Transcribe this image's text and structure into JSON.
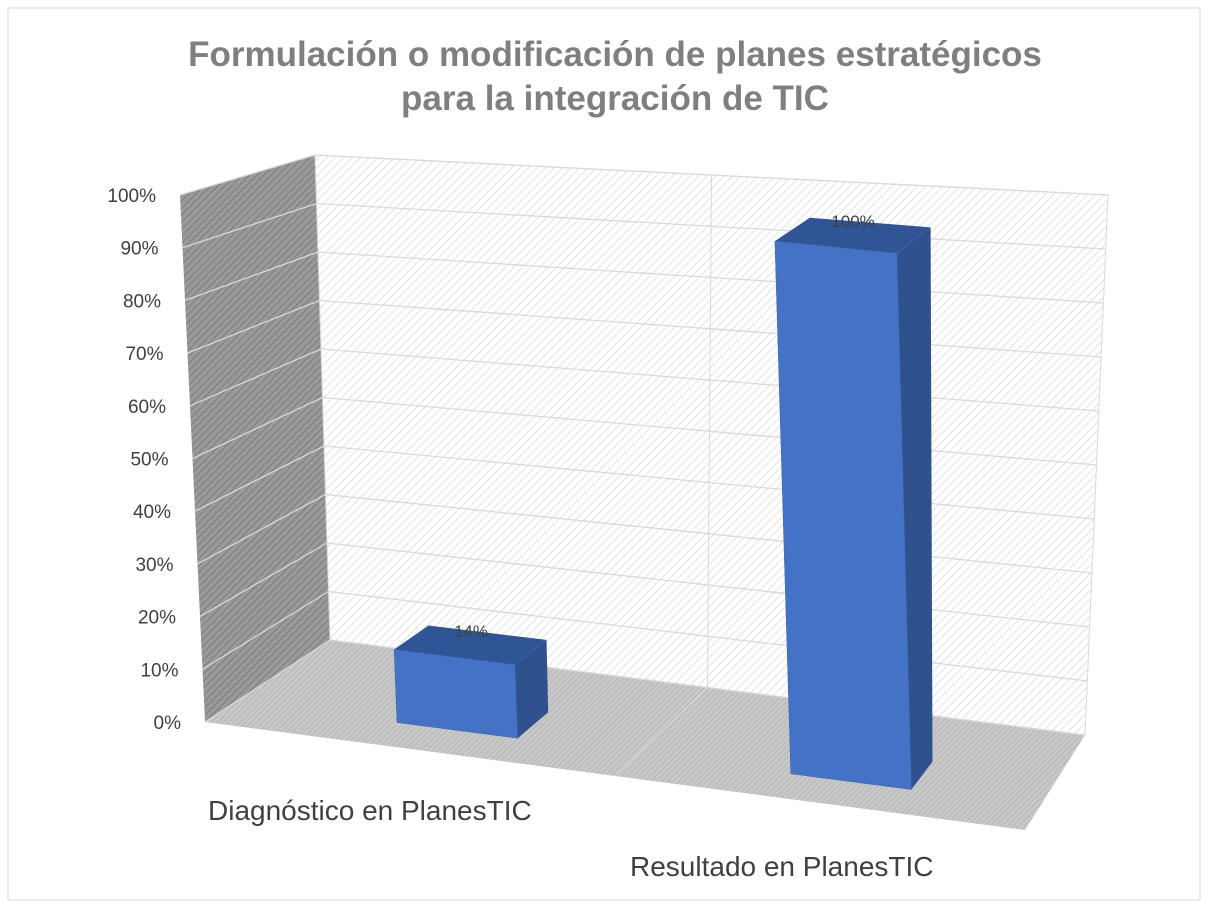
{
  "chart_data": {
    "type": "bar3d",
    "title": [
      "Formulación o modificación de planes estratégicos",
      "para la integración de TIC"
    ],
    "categories": [
      "Diagnóstico en PlanesTIC",
      "Resultado en PlanesTIC"
    ],
    "values": [
      14,
      100
    ],
    "value_labels": [
      "14%",
      "100%"
    ],
    "color": "#4472c4",
    "ylim": [
      0,
      100
    ],
    "yticks": [
      {
        "value": 0,
        "label": "0%"
      },
      {
        "value": 10,
        "label": "10%"
      },
      {
        "value": 20,
        "label": "20%"
      },
      {
        "value": 30,
        "label": "30%"
      },
      {
        "value": 40,
        "label": "40%"
      },
      {
        "value": 50,
        "label": "50%"
      },
      {
        "value": 60,
        "label": "60%"
      },
      {
        "value": 70,
        "label": "70%"
      },
      {
        "value": 80,
        "label": "80%"
      },
      {
        "value": 90,
        "label": "90%"
      },
      {
        "value": 100,
        "label": "100%"
      }
    ],
    "grid": true
  }
}
